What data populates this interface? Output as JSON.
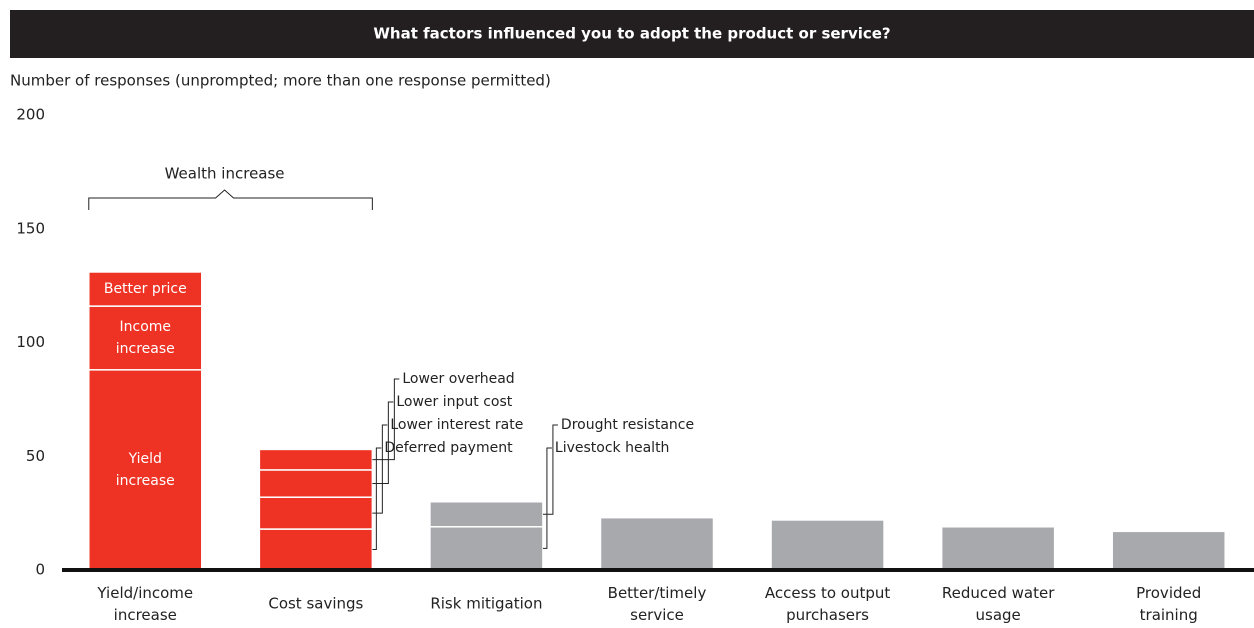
{
  "chart_data": {
    "type": "stacked-bar",
    "title": "What factors influenced you to adopt the product or service?",
    "subtitle": "Number of responses (unprompted; more than one response permitted)",
    "annotation": "Wealth increase",
    "ylim": [
      0,
      200
    ],
    "yticks": [
      0,
      50,
      100,
      150,
      200
    ],
    "grid": false,
    "categories": [
      "Yield/income increase",
      "Cost savings",
      "Risk mitigation",
      "Better/timely service",
      "Access to output purchasers",
      "Reduced water usage",
      "Provided training"
    ],
    "bars": [
      {
        "color": "#ee3224",
        "label_position": "inside",
        "segments": [
          {
            "name": "Yield increase",
            "value": 88
          },
          {
            "name": "Income increase",
            "value": 28
          },
          {
            "name": "Better price",
            "value": 15
          }
        ]
      },
      {
        "color": "#ee3224",
        "label_position": "outside",
        "segments": [
          {
            "name": "Deferred payment",
            "value": 18
          },
          {
            "name": "Lower interest rate",
            "value": 14
          },
          {
            "name": "Lower input cost",
            "value": 12
          },
          {
            "name": "Lower overhead",
            "value": 9
          }
        ]
      },
      {
        "color": "#a7a9ac",
        "label_position": "outside",
        "segments": [
          {
            "name": "Livestock health",
            "value": 19
          },
          {
            "name": "Drought resistance",
            "value": 11
          }
        ]
      },
      {
        "color": "#a7a9ac",
        "segments": [
          {
            "value": 23
          }
        ]
      },
      {
        "color": "#a7a9ac",
        "segments": [
          {
            "value": 22
          }
        ]
      },
      {
        "color": "#a7a9ac",
        "segments": [
          {
            "value": 19
          }
        ]
      },
      {
        "color": "#a7a9ac",
        "segments": [
          {
            "value": 17
          }
        ]
      }
    ]
  }
}
